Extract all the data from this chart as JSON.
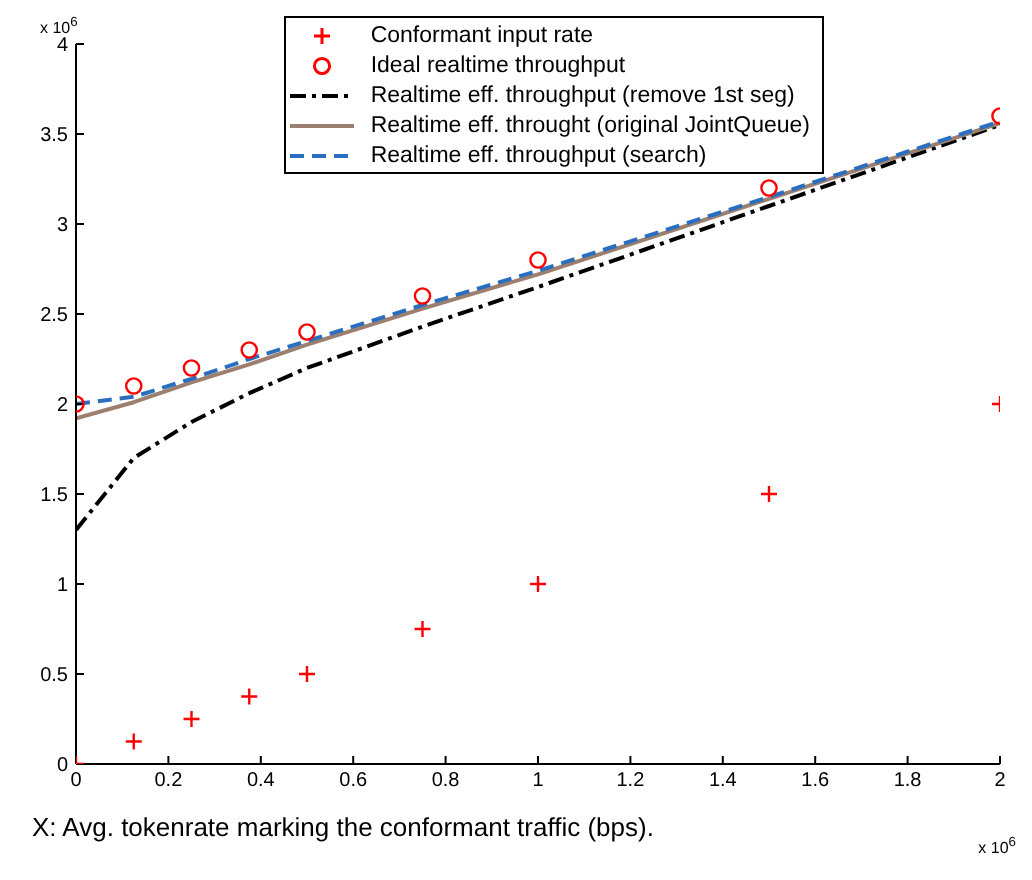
{
  "chart_data": {
    "type": "line",
    "xlabel": "X: Avg. tokenrate marking the conformant traffic (bps).",
    "annotations": [
      "x 10$^{6}$",
      "x 10$^{6}$"
    ],
    "x": [
      0,
      0.125,
      0.25,
      0.375,
      0.5,
      0.75,
      1,
      1.5,
      2
    ],
    "series": [
      {
        "name": "Conformant input rate",
        "type": "scatter",
        "marker": "cross",
        "color": "#ff0000",
        "values": [
          0,
          0.125,
          0.25,
          0.375,
          0.5,
          0.75,
          1,
          1.5,
          2
        ]
      },
      {
        "name": "Ideal realtime throughput",
        "type": "scatter",
        "marker": "circle",
        "color": "#ff0000",
        "values": [
          2.0,
          2.1,
          2.2,
          2.3,
          2.4,
          2.6,
          2.8,
          3.2,
          3.6
        ]
      },
      {
        "name": "Realtime eff. throughput (remove 1st seg)",
        "line_style": "dashdot",
        "color": "#000000",
        "values": [
          1.3,
          1.7,
          1.9,
          2.06,
          2.2,
          2.43,
          2.65,
          3.1,
          3.55
        ]
      },
      {
        "name": "Realtime eff. throught (original JointQueue)",
        "line_style": "solid",
        "color": "#9c7f6e",
        "values": [
          1.92,
          2.01,
          2.12,
          2.22,
          2.33,
          2.53,
          2.72,
          3.14,
          3.56
        ]
      },
      {
        "name": "Realtime eff. throughput (search)",
        "line_style": "dashed",
        "color": "#2a6fbf",
        "values": [
          2.0,
          2.04,
          2.14,
          2.25,
          2.35,
          2.55,
          2.74,
          3.15,
          3.57
        ]
      }
    ],
    "xlim": [
      0,
      2
    ],
    "xticks": [
      0,
      0.2,
      0.4,
      0.6,
      0.8,
      1,
      1.2,
      1.4,
      1.6,
      1.8,
      2
    ],
    "ylim": [
      0,
      4
    ],
    "yticks": [
      0,
      0.5,
      1,
      1.5,
      2,
      2.5,
      3,
      3.5,
      4
    ],
    "legend": "top right"
  }
}
